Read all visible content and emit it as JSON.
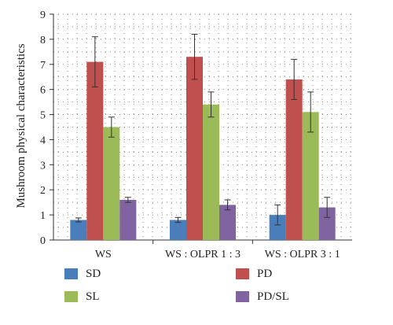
{
  "chart_data": {
    "type": "bar",
    "ylabel": "Mushroom physical characteristics",
    "xlabel": "",
    "ylim": [
      0,
      9
    ],
    "yticks": [
      0,
      1,
      2,
      3,
      4,
      5,
      6,
      7,
      8,
      9
    ],
    "grid": "dotted",
    "legend": "bottom",
    "categories": [
      "WS",
      "WS : OLPR 1 : 3",
      "WS : OLPR 3 : 1"
    ],
    "series": [
      {
        "name": "SD",
        "color": "#4a7ebb",
        "values": [
          0.8,
          0.8,
          1.0
        ],
        "errors": [
          0.08,
          0.1,
          0.4
        ]
      },
      {
        "name": "PD",
        "color": "#c0504d",
        "values": [
          7.1,
          7.3,
          6.4
        ],
        "errors": [
          1.0,
          0.9,
          0.8
        ]
      },
      {
        "name": "SL",
        "color": "#9bbb59",
        "values": [
          4.5,
          5.4,
          5.1
        ],
        "errors": [
          0.4,
          0.5,
          0.8
        ]
      },
      {
        "name": "PD/SL",
        "color": "#8064a2",
        "values": [
          1.6,
          1.4,
          1.3
        ],
        "errors": [
          0.1,
          0.2,
          0.4
        ]
      }
    ]
  }
}
